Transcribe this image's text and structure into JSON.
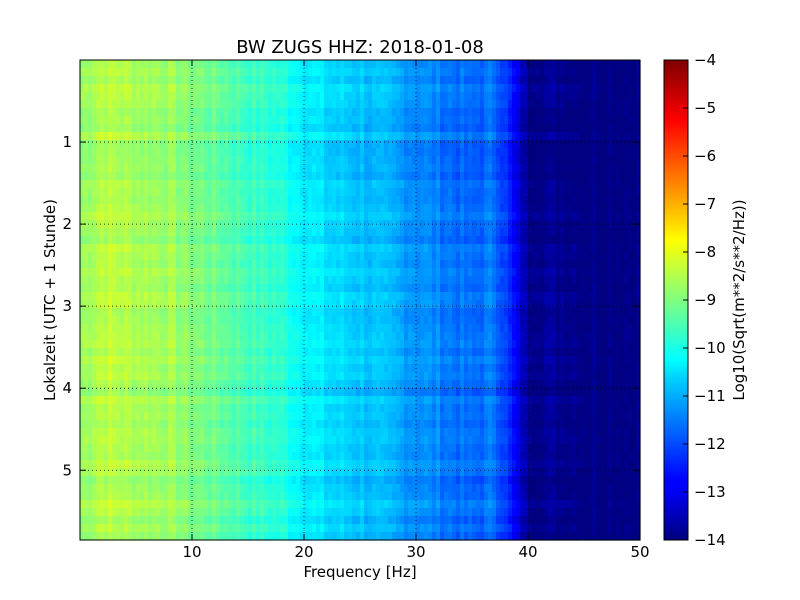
{
  "chart_data": {
    "type": "heatmap",
    "title": "BW ZUGS HHZ: 2018-01-08",
    "xlabel": "Frequency [Hz]",
    "ylabel": "Lokalzeit (UTC + 1 Stunde)",
    "xlim": [
      0,
      50
    ],
    "ylim": [
      5.85,
      0
    ],
    "x_ticks": [
      10,
      20,
      30,
      40,
      50
    ],
    "y_ticks": [
      1,
      2,
      3,
      4,
      5
    ],
    "grid": true,
    "colormap": "jet",
    "colorbar": {
      "label": "Log10(Sqrt(m**2/s**2/Hz))",
      "range": [
        -14,
        -4
      ],
      "ticks": [
        -4,
        -5,
        -6,
        -7,
        -8,
        -9,
        -10,
        -11,
        -12,
        -13,
        -14
      ]
    },
    "profile": {
      "frequency_hz": [
        0,
        2,
        5,
        8,
        10,
        12,
        15,
        18,
        20,
        22,
        25,
        28,
        30,
        32,
        35,
        37,
        38,
        39,
        40,
        45,
        50
      ],
      "log10_amplitude": [
        -8.8,
        -8.4,
        -8.6,
        -8.7,
        -9.0,
        -9.2,
        -9.6,
        -9.9,
        -10.3,
        -10.6,
        -10.8,
        -11.1,
        -11.3,
        -11.5,
        -11.8,
        -11.6,
        -12.2,
        -13.0,
        -13.8,
        -13.9,
        -13.9
      ]
    }
  }
}
